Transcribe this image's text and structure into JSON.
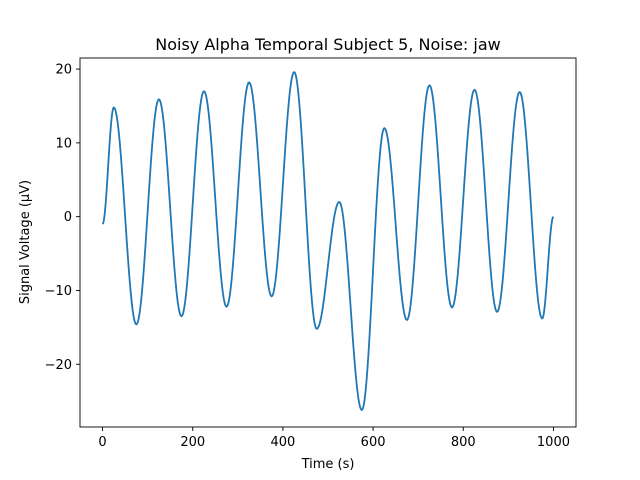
{
  "chart_data": {
    "type": "line",
    "title": "Noisy Alpha Temporal Subject 5, Noise: jaw",
    "xlabel": "Time (s)",
    "ylabel": "Signal Voltage (μV)",
    "xlim": [
      -50,
      1050
    ],
    "ylim": [
      -28.5,
      21.5
    ],
    "xticks": [
      0,
      200,
      400,
      600,
      800,
      1000
    ],
    "xtick_labels": [
      "0",
      "200",
      "400",
      "600",
      "800",
      "1000"
    ],
    "yticks": [
      -20,
      -10,
      0,
      10,
      20
    ],
    "ytick_labels": [
      "−20",
      "−10",
      "0",
      "10",
      "20"
    ],
    "grid": false,
    "color": "#1f77b4",
    "series": [
      {
        "x": [
          0,
          25,
          75,
          125,
          175,
          225,
          275,
          325,
          375,
          425,
          475,
          525,
          575,
          625,
          675,
          725,
          775,
          825,
          875,
          925,
          975,
          1000
        ],
        "values": [
          -1,
          14.8,
          -14.6,
          15.9,
          -13.5,
          17.0,
          -12.2,
          18.2,
          -10.8,
          19.6,
          -15.2,
          2.0,
          -26.2,
          12.0,
          -14.0,
          17.8,
          -12.3,
          17.2,
          -12.9,
          16.9,
          -13.8,
          0
        ]
      }
    ]
  }
}
